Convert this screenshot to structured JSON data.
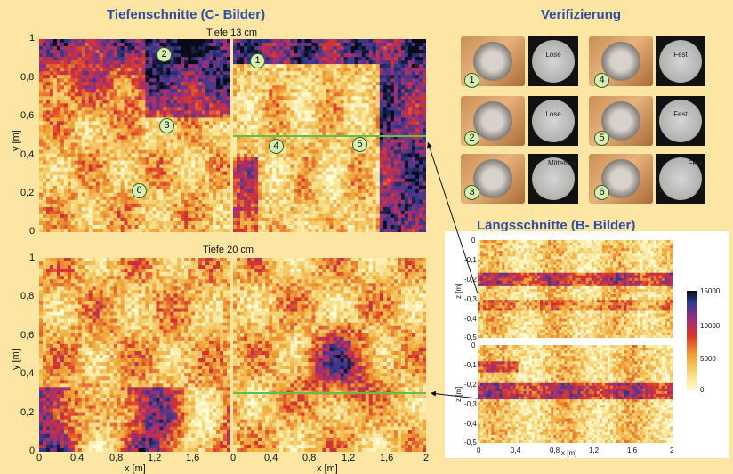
{
  "titles": {
    "c_images": "Tiefenschnitte (C- Bilder)",
    "verification": "Verifizierung",
    "b_images": "Längsschnitte (B- Bilder)"
  },
  "panels": {
    "top_label": "Tiefe 13 cm",
    "bottom_label": "Tiefe 20 cm"
  },
  "c_axes": {
    "y_label": "y [m]",
    "x_label": "x [m]",
    "y_ticks": [
      "1",
      "0,8",
      "0,6",
      "0,4",
      "0,2",
      "0"
    ],
    "x_ticks_left": [
      "0",
      "0,4",
      "0,8",
      "1,2",
      "1,6"
    ],
    "x_ticks_right": [
      "0",
      "0,4",
      "0,8",
      "1,2",
      "1,6",
      "2"
    ]
  },
  "markers": [
    "1",
    "2",
    "3",
    "4",
    "5",
    "6"
  ],
  "verification": {
    "items": [
      {
        "num": "1",
        "label": "Lose"
      },
      {
        "num": "4",
        "label": "Fest"
      },
      {
        "num": "2",
        "label": "Lose"
      },
      {
        "num": "5",
        "label": "Fest"
      },
      {
        "num": "3",
        "label": "Mittelfest"
      },
      {
        "num": "6",
        "label": "Fest"
      }
    ]
  },
  "b_axes": {
    "z_label": "z [m]",
    "x_label": "x [m]",
    "z_ticks": [
      "0",
      "-0,1",
      "-0,2",
      "-0,3",
      "-0,4",
      "-0,5"
    ],
    "x_ticks": [
      "0",
      "0,4",
      "0,8",
      "1,2",
      "1,6",
      "2"
    ]
  },
  "colorbar": {
    "ticks": [
      "15000",
      "10000",
      "5000",
      "0"
    ]
  },
  "colors": {
    "background": "#fde6a3",
    "title": "#2f4fa3",
    "section_line": "#5fc04a",
    "marker_fill": "#d9efb3"
  }
}
